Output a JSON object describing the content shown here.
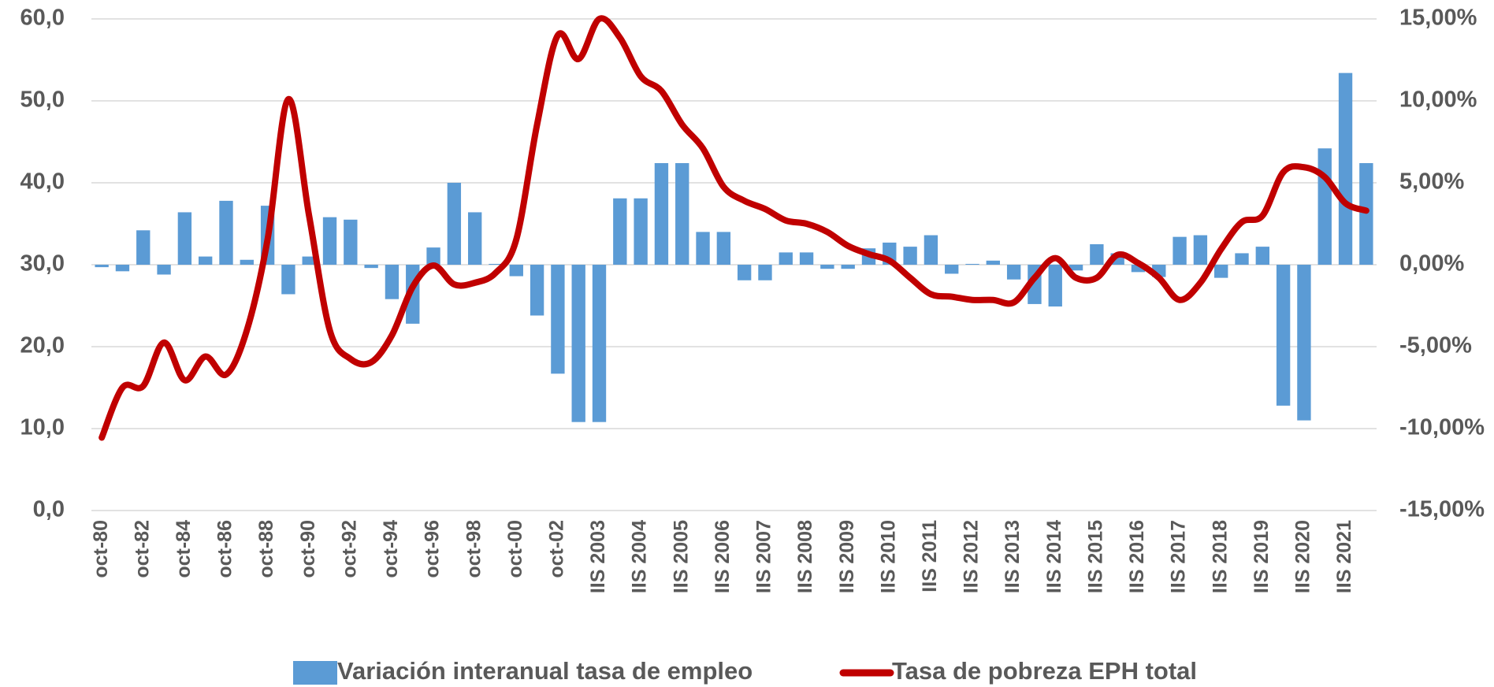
{
  "chart_data": {
    "type": "bar_line",
    "categories": [
      "oct-80",
      null,
      "oct-82",
      null,
      "oct-84",
      null,
      "oct-86",
      null,
      "oct-88",
      null,
      "oct-90",
      null,
      "oct-92",
      null,
      "oct-94",
      null,
      "oct-96",
      null,
      "oct-98",
      null,
      "oct-00",
      null,
      "oct-02",
      null,
      "IIS 2003",
      null,
      "IIS 2004",
      null,
      "IIS 2005",
      null,
      "IIS 2006",
      null,
      "IIS 2007",
      null,
      "IIS 2008",
      null,
      "IIS 2009",
      null,
      "IIS 2010",
      null,
      "IIS 2011",
      null,
      "IIS 2012",
      null,
      "IIS 2013",
      null,
      "IIS 2014",
      null,
      "IIS 2015",
      null,
      "IIS 2016",
      null,
      "IIS 2017",
      null,
      "IIS 2018",
      null,
      "IIS 2019",
      null,
      "IIS 2020",
      null,
      "IIS 2021",
      null
    ],
    "series": [
      {
        "name": "Variación interanual tasa de empleo",
        "type": "bar",
        "axis": "y2",
        "color": "#5b9bd5",
        "values": [
          -0.15,
          -0.4,
          2.1,
          -0.6,
          3.2,
          0.5,
          3.9,
          0.3,
          3.6,
          -1.8,
          0.5,
          2.9,
          2.75,
          -0.2,
          -2.1,
          -3.6,
          1.05,
          5.0,
          3.2,
          0.05,
          -0.7,
          -3.1,
          -6.65,
          -9.6,
          -9.6,
          4.05,
          4.05,
          6.2,
          6.2,
          2.0,
          2.0,
          -0.95,
          -0.95,
          0.75,
          0.75,
          -0.25,
          -0.25,
          1.0,
          1.35,
          1.1,
          1.8,
          -0.55,
          0.05,
          0.25,
          -0.9,
          -2.4,
          -2.55,
          -0.35,
          1.25,
          0.7,
          -0.45,
          -0.75,
          1.7,
          1.8,
          -0.8,
          0.7,
          1.1,
          -8.6,
          -9.5,
          7.1,
          11.7,
          6.2
        ]
      },
      {
        "name": "Tasa de pobreza EPH total",
        "type": "line",
        "axis": "y",
        "color": "#c00000",
        "values": [
          8.9,
          15.0,
          15.2,
          20.5,
          15.9,
          18.8,
          16.6,
          22.0,
          33.1,
          50.2,
          36.0,
          22.0,
          18.5,
          18.1,
          21.4,
          27.3,
          29.9,
          27.6,
          27.8,
          29.0,
          33.1,
          47.1,
          58.0,
          55.1,
          60.0,
          57.7,
          53.0,
          51.2,
          47.1,
          44.2,
          39.5,
          37.8,
          36.8,
          35.4,
          35.0,
          34.0,
          32.3,
          31.3,
          30.5,
          28.4,
          26.4,
          26.1,
          25.7,
          25.7,
          25.4,
          28.4,
          30.8,
          28.4,
          28.4,
          31.2,
          30.2,
          28.4,
          25.7,
          27.8,
          31.9,
          35.2,
          36.0,
          41.3,
          41.9,
          40.7,
          37.5,
          36.6
        ]
      }
    ],
    "ylim": [
      0,
      60
    ],
    "yticks": [
      {
        "value": 0,
        "label": "0,0"
      },
      {
        "value": 10,
        "label": "10,0"
      },
      {
        "value": 20,
        "label": "20,0"
      },
      {
        "value": 30,
        "label": "30,0"
      },
      {
        "value": 40,
        "label": "40,0"
      },
      {
        "value": 50,
        "label": "50,0"
      },
      {
        "value": 60,
        "label": "60,0"
      }
    ],
    "y2lim": [
      -15,
      15
    ],
    "y2ticks": [
      {
        "value": -15,
        "label": "-15,00%"
      },
      {
        "value": -10,
        "label": "-10,00%"
      },
      {
        "value": -5,
        "label": "-5,00%"
      },
      {
        "value": 0,
        "label": "0,00%"
      },
      {
        "value": 5,
        "label": "5,00%"
      },
      {
        "value": 10,
        "label": "10,00%"
      },
      {
        "value": 15,
        "label": "15,00%"
      }
    ],
    "grid": true,
    "legend": "bottom"
  }
}
